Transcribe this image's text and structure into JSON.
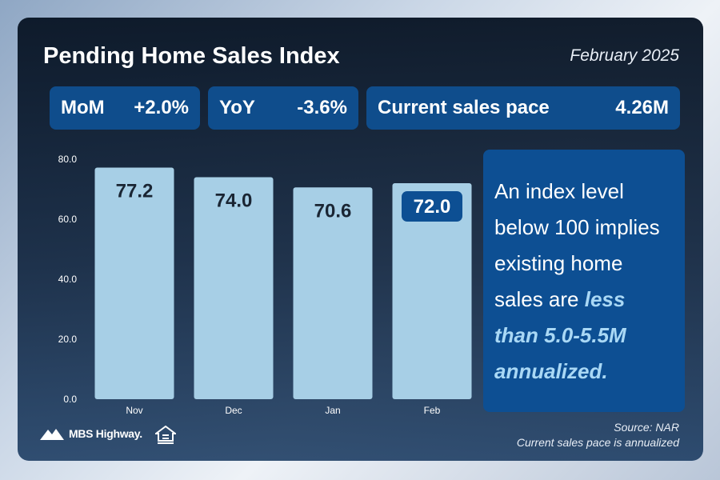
{
  "header": {
    "title": "Pending Home Sales Index",
    "date": "February 2025"
  },
  "stats": [
    {
      "label": "MoM",
      "value": "+2.0%"
    },
    {
      "label": "YoY",
      "value": "-3.6%"
    },
    {
      "label": "Current sales pace",
      "value": "4.26M"
    }
  ],
  "info": {
    "text_plain": "An index level below 100 implies existing home sales are",
    "text_emphasis": "less than 5.0-5.5M annualized."
  },
  "footer": {
    "brand": "MBS Highway.",
    "source": "Source: NAR",
    "note": "Current sales pace is annualized"
  },
  "colors": {
    "bar": "#a7cfe6",
    "highlight_label_bg": "#0d4f93",
    "stat_bg": "#0f4d8c",
    "info_bg": "#0d4f93",
    "emphasis": "#a9d8f5"
  },
  "chart_data": {
    "type": "bar",
    "categories": [
      "Nov",
      "Dec",
      "Jan",
      "Feb"
    ],
    "values": [
      77.2,
      74.0,
      70.6,
      72.0
    ],
    "data_labels": [
      "77.2",
      "74.0",
      "70.6",
      "72.0"
    ],
    "highlighted": "Feb",
    "ylim": [
      0,
      80
    ],
    "yticks": [
      "0.0",
      "20.0",
      "40.0",
      "60.0",
      "80.0"
    ],
    "grid": false,
    "title": "",
    "xlabel": "",
    "ylabel": ""
  }
}
